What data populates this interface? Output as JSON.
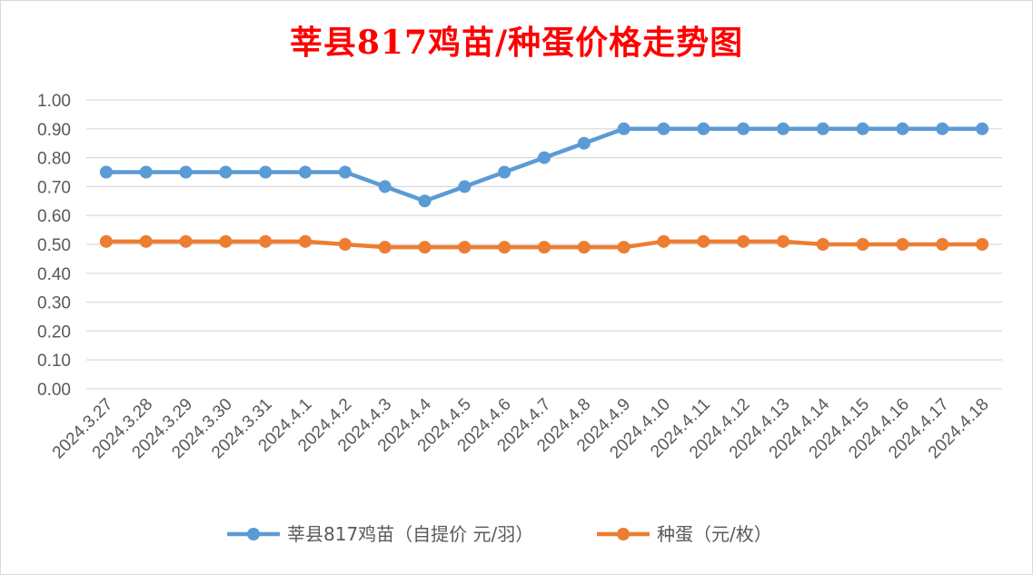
{
  "chart_data": {
    "type": "line",
    "title": "莘县817鸡苗/种蛋价格走势图",
    "title_color": "#ff0000",
    "x": [
      "2024.3.27",
      "2024.3.28",
      "2024.3.29",
      "2024.3.30",
      "2024.3.31",
      "2024.4.1",
      "2024.4.2",
      "2024.4.3",
      "2024.4.4",
      "2024.4.5",
      "2024.4.6",
      "2024.4.7",
      "2024.4.8",
      "2024.4.9",
      "2024.4.10",
      "2024.4.11",
      "2024.4.12",
      "2024.4.13",
      "2024.4.14",
      "2024.4.15",
      "2024.4.16",
      "2024.4.17",
      "2024.4.18"
    ],
    "series": [
      {
        "name": "莘县817鸡苗（自提价 元/羽）",
        "color": "#5b9bd5",
        "values": [
          0.75,
          0.75,
          0.75,
          0.75,
          0.75,
          0.75,
          0.75,
          0.7,
          0.65,
          0.7,
          0.75,
          0.8,
          0.85,
          0.9,
          0.9,
          0.9,
          0.9,
          0.9,
          0.9,
          0.9,
          0.9,
          0.9,
          0.9
        ]
      },
      {
        "name": "种蛋（元/枚）",
        "color": "#ed7d31",
        "values": [
          0.51,
          0.51,
          0.51,
          0.51,
          0.51,
          0.51,
          0.5,
          0.49,
          0.49,
          0.49,
          0.49,
          0.49,
          0.49,
          0.49,
          0.51,
          0.51,
          0.51,
          0.51,
          0.5,
          0.5,
          0.5,
          0.5,
          0.5
        ]
      }
    ],
    "y_ticks": [
      "0.00",
      "0.10",
      "0.20",
      "0.30",
      "0.40",
      "0.50",
      "0.60",
      "0.70",
      "0.80",
      "0.90",
      "1.00"
    ],
    "ylim": [
      0,
      1.0
    ],
    "grid": true,
    "legend_position": "bottom"
  }
}
